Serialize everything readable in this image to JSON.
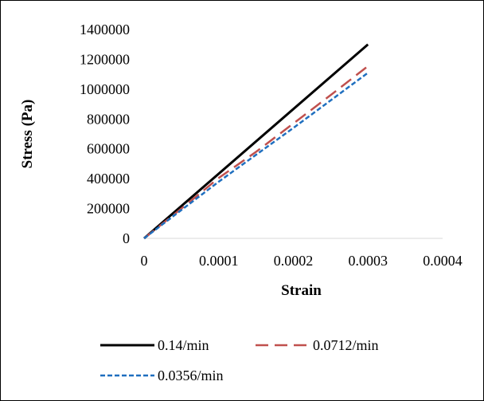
{
  "chart_data": {
    "type": "line",
    "title": "",
    "xlabel": "Strain",
    "ylabel": "Stress (Pa)",
    "xlim": [
      0,
      0.0004
    ],
    "ylim": [
      0,
      1400000
    ],
    "x_ticks": [
      0,
      0.0001,
      0.0002,
      0.0003,
      0.0004
    ],
    "x_tick_labels": [
      "0",
      "0.0001",
      "0.0002",
      "0.0003",
      "0.0004"
    ],
    "y_ticks": [
      0,
      200000,
      400000,
      600000,
      800000,
      1000000,
      1200000,
      1400000
    ],
    "y_tick_labels": [
      "0",
      "200000",
      "400000",
      "600000",
      "800000",
      "1000000",
      "1200000",
      "1400000"
    ],
    "grid": false,
    "legend_position": "bottom",
    "series": [
      {
        "name": "0.14/min",
        "color": "#000000",
        "dash": "solid",
        "x": [
          0,
          0.0003
        ],
        "y": [
          0,
          1300000
        ]
      },
      {
        "name": "0.0712/min",
        "color": "#c0504d",
        "dash": "long-dash",
        "x": [
          0,
          5e-05,
          0.0001,
          0.00015,
          0.0002,
          0.00025,
          0.0003
        ],
        "y": [
          0,
          200000,
          405000,
          580000,
          770000,
          960000,
          1155000
        ]
      },
      {
        "name": "0.0356/min",
        "color": "#1f6fbf",
        "dash": "short-dash",
        "x": [
          0,
          5e-05,
          0.0001,
          0.00015,
          0.0002,
          0.00025,
          0.0003
        ],
        "y": [
          0,
          190000,
          380000,
          560000,
          740000,
          925000,
          1110000
        ]
      }
    ]
  }
}
